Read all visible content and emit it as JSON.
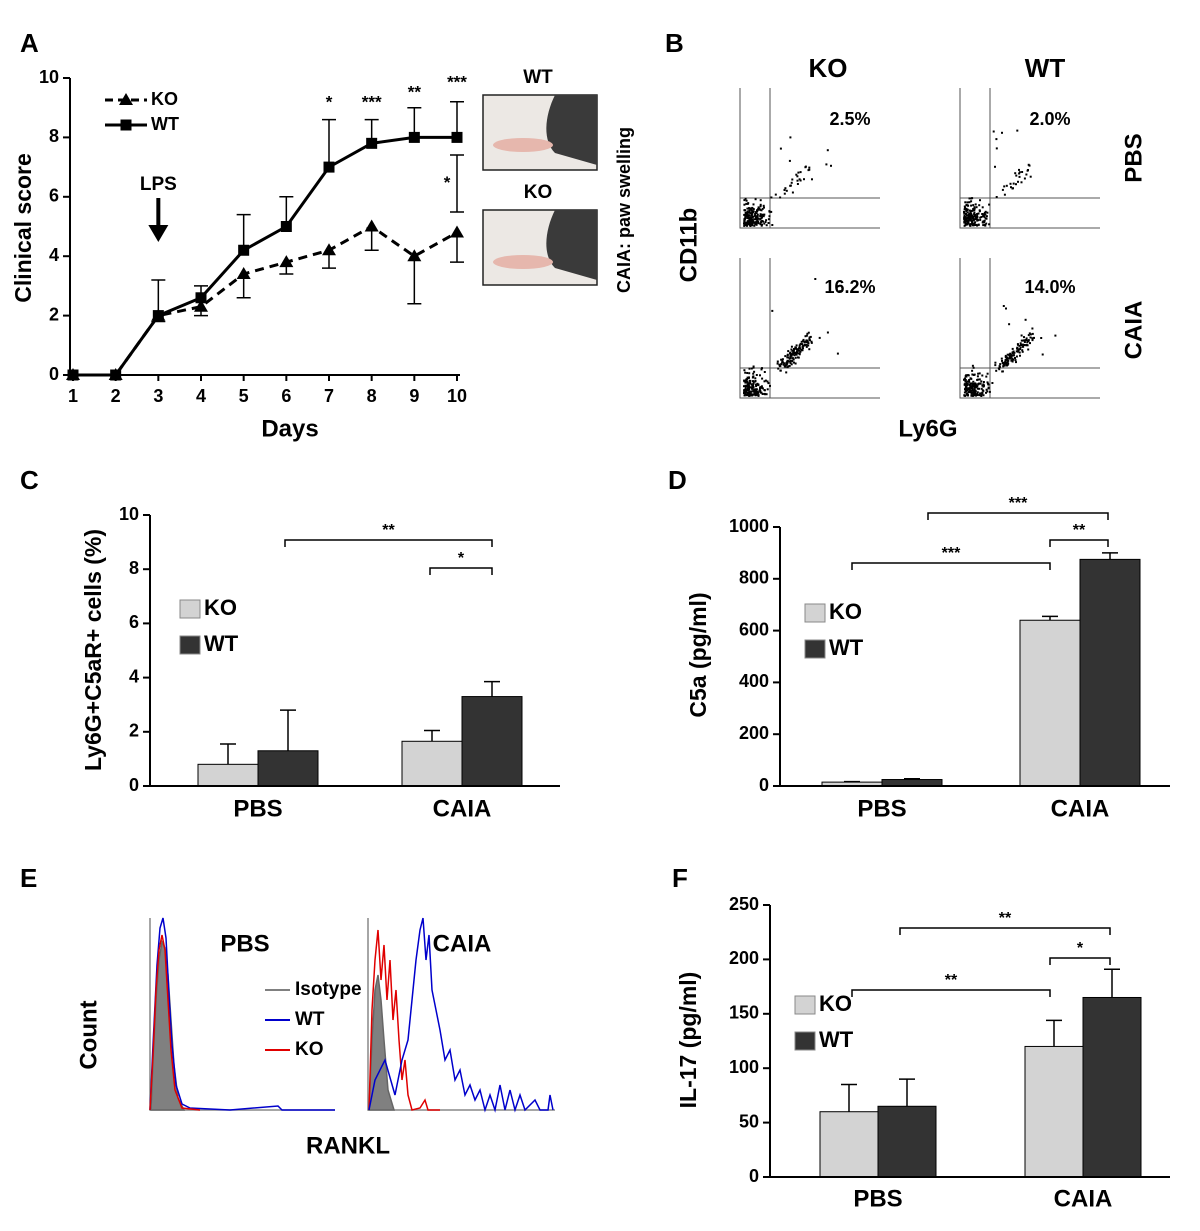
{
  "chart_data": [
    {
      "type": "line",
      "label": "A",
      "x_label": "Days",
      "y_label": "Clinical score",
      "x": [
        1,
        2,
        3,
        4,
        5,
        6,
        7,
        8,
        9,
        10
      ],
      "xlim": [
        1,
        10
      ],
      "xticks": [
        1,
        2,
        3,
        4,
        5,
        6,
        7,
        8,
        9,
        10
      ],
      "ylim": [
        0,
        10
      ],
      "yticks": [
        0,
        2,
        4,
        6,
        8,
        10
      ],
      "series": [
        {
          "name": "KO",
          "color": "#000000",
          "line_style": "dashed",
          "marker": "triangle",
          "values": [
            0,
            0,
            2,
            2.3,
            3.4,
            3.8,
            4.2,
            5,
            4,
            4.8
          ],
          "errors": [
            0,
            0,
            0.2,
            0.3,
            0.8,
            0.4,
            0.6,
            0.8,
            1.6,
            1.0
          ]
        },
        {
          "name": "WT",
          "color": "#000000",
          "line_style": "solid",
          "marker": "square",
          "values": [
            0,
            0,
            2,
            2.6,
            4.2,
            5,
            7,
            7.8,
            8,
            8
          ],
          "errors": [
            0,
            0,
            1.2,
            0.4,
            1.2,
            1.0,
            1.6,
            0.8,
            1.0,
            1.2
          ]
        }
      ],
      "annotations": [
        {
          "text": "*",
          "x": 7
        },
        {
          "text": "***",
          "x": 8
        },
        {
          "text": "**",
          "x": 9
        },
        {
          "text": "***",
          "x": 10
        },
        {
          "text": "*",
          "x": 10
        }
      ],
      "arrow": {
        "text": "LPS",
        "x": 3
      },
      "photos": [
        "WT",
        "KO"
      ],
      "photo_caption": "CAIA: paw swelling"
    },
    {
      "type": "bar",
      "label": "C",
      "y_label": "Ly6G+C5aR+ cells (%)",
      "categories": [
        "PBS",
        "CAIA"
      ],
      "ylim": [
        0,
        10
      ],
      "yticks": [
        0,
        2,
        4,
        6,
        8,
        10
      ],
      "series": [
        {
          "name": "KO",
          "color": "#d3d3d3",
          "values": [
            0.8,
            1.65
          ],
          "errors": [
            0.75,
            0.4
          ]
        },
        {
          "name": "WT",
          "color": "#333333",
          "values": [
            1.3,
            3.3
          ],
          "errors": [
            1.5,
            0.55
          ]
        }
      ],
      "annotations": [
        "**",
        "*"
      ]
    },
    {
      "type": "bar",
      "label": "D",
      "y_label": "C5a (pg/ml)",
      "categories": [
        "PBS",
        "CAIA"
      ],
      "ylim": [
        0,
        1000
      ],
      "yticks": [
        0,
        200,
        400,
        600,
        800,
        1000
      ],
      "series": [
        {
          "name": "KO",
          "color": "#d3d3d3",
          "values": [
            15,
            640
          ],
          "errors": [
            2,
            15
          ]
        },
        {
          "name": "WT",
          "color": "#333333",
          "values": [
            25,
            875
          ],
          "errors": [
            3,
            25
          ]
        }
      ],
      "annotations": [
        "***",
        "**",
        "***"
      ]
    },
    {
      "type": "bar",
      "label": "F",
      "y_label": "IL-17 (pg/ml)",
      "categories": [
        "PBS",
        "CAIA"
      ],
      "ylim": [
        0,
        250
      ],
      "yticks": [
        0,
        50,
        100,
        150,
        200,
        250
      ],
      "series": [
        {
          "name": "KO",
          "color": "#d3d3d3",
          "values": [
            60,
            120
          ],
          "errors": [
            25,
            24
          ]
        },
        {
          "name": "WT",
          "color": "#333333",
          "values": [
            65,
            165
          ],
          "errors": [
            25,
            26
          ]
        }
      ],
      "annotations": [
        "**",
        "*",
        "**"
      ]
    }
  ],
  "flow_cytometry": {
    "label": "B",
    "columns": [
      "KO",
      "WT"
    ],
    "rows": [
      "PBS",
      "CAIA"
    ],
    "percentages": [
      [
        "2.5%",
        "2.0%"
      ],
      [
        "16.2%",
        "14.0%"
      ]
    ],
    "y_label": "CD11b",
    "x_label": "Ly6G"
  },
  "histograms": {
    "label": "E",
    "plots": [
      "PBS",
      "CAIA"
    ],
    "legend": [
      {
        "name": "Isotype",
        "color": "#808080"
      },
      {
        "name": "WT",
        "color": "#0000cc"
      },
      {
        "name": "KO",
        "color": "#e00000"
      }
    ],
    "y_label": "Count",
    "x_label": "RANKL"
  }
}
